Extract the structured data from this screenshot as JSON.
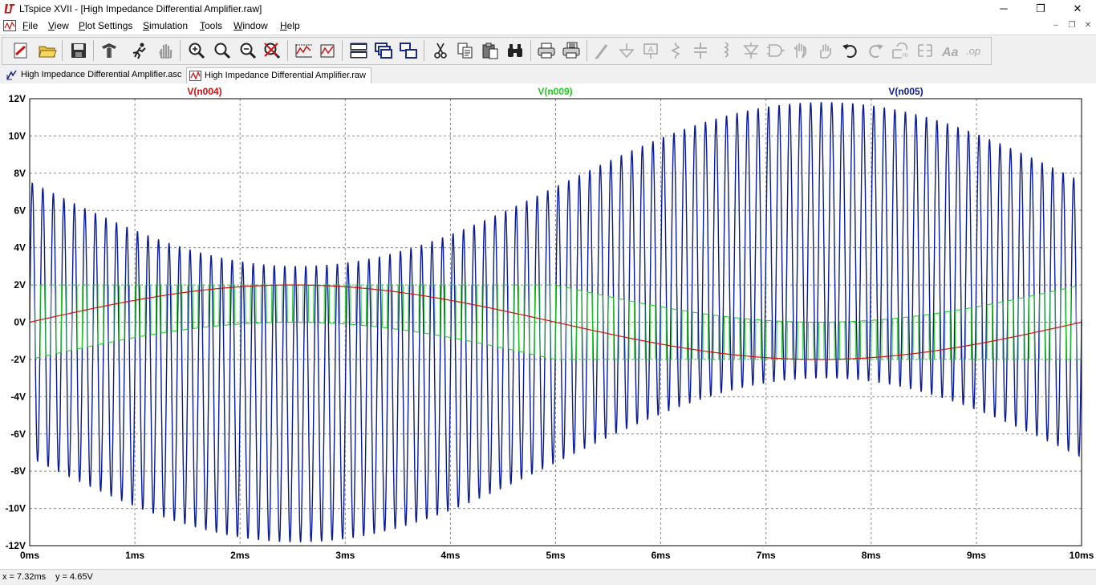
{
  "window": {
    "title": "LTspice XVII - [High Impedance Differential Amplifier.raw]",
    "minimize": "─",
    "maximize": "❐",
    "close": "✕"
  },
  "menu": [
    {
      "label": "File",
      "u": "F",
      "rest": "ile"
    },
    {
      "label": "View",
      "u": "V",
      "rest": "iew"
    },
    {
      "label": "Plot Settings",
      "u": "P",
      "rest": "lot Settings"
    },
    {
      "label": "Simulation",
      "u": "S",
      "rest": "imulation"
    },
    {
      "label": "Tools",
      "u": "T",
      "rest": "ools"
    },
    {
      "label": "Window",
      "u": "W",
      "rest": "indow"
    },
    {
      "label": "Help",
      "u": "H",
      "rest": "elp"
    }
  ],
  "mdi": {
    "minimize": "–",
    "restore": "❐",
    "close": "✕"
  },
  "toolbar_icons": [
    "new-schematic-icon",
    "open-icon",
    "save-icon",
    "control-panel-icon",
    "run-icon",
    "halt-icon",
    "zoom-in-icon",
    "zoom-full-icon",
    "zoom-out-icon",
    "zoom-cancel-icon",
    "autorange-icon",
    "fit-icon",
    "tile-horizontal-icon",
    "cascade-icon",
    "tile-vertical-icon",
    "cut-icon",
    "copy-icon",
    "paste-icon",
    "find-icon",
    "print-icon",
    "print-setup-icon",
    "wire-icon",
    "ground-icon",
    "label-icon",
    "resistor-icon",
    "capacitor-icon",
    "inductor-icon",
    "diode-icon",
    "component-icon",
    "move-icon",
    "drag-icon",
    "undo-icon",
    "redo-icon",
    "rotate-icon",
    "mirror-icon",
    "text-icon",
    "spice-directive-icon"
  ],
  "tabs": [
    {
      "label": "High Impedance Differential Amplifier.asc",
      "icon": "schematic-icon"
    },
    {
      "label": "High Impedance Differential Amplifier.raw",
      "icon": "waveform-icon"
    }
  ],
  "status": {
    "x": "x = 7.32ms",
    "y": "y = 4.65V"
  },
  "colors": {
    "v_n004": "#d01010",
    "v_n009": "#22cc22",
    "v_n005": "#0a1a9a",
    "grid": "#8a8a8a"
  },
  "chart_data": {
    "type": "line",
    "xlabel": "",
    "ylabel": "",
    "xlim": [
      0,
      10
    ],
    "ylim": [
      -12,
      12
    ],
    "x_unit": "ms",
    "y_unit": "V",
    "xticks": [
      "0ms",
      "1ms",
      "2ms",
      "3ms",
      "4ms",
      "5ms",
      "6ms",
      "7ms",
      "8ms",
      "9ms",
      "10ms"
    ],
    "yticks": [
      "12V",
      "10V",
      "8V",
      "6V",
      "4V",
      "2V",
      "0V",
      "-2V",
      "-4V",
      "-6V",
      "-8V",
      "-10V",
      "-12V"
    ],
    "grid": true,
    "series": [
      {
        "name": "V(n004)",
        "color": "#d01010",
        "kind": "sine",
        "description_values": {
          "amplitude": 2,
          "frequency_khz": 0.1,
          "offset": 0
        }
      },
      {
        "name": "V(n009)",
        "color": "#22cc22",
        "kind": "switching",
        "description_values": {
          "levels": [
            -2,
            2
          ],
          "carrier_khz": 10,
          "envelope_series": "V(n004)"
        }
      },
      {
        "name": "V(n005)",
        "color": "#0a1a9a",
        "kind": "am_carrier",
        "description_values": {
          "envelope_amplitude": 8.9,
          "carrier_amplitude": 3,
          "carrier_khz": 10,
          "envelope_khz": 0.1,
          "envelope_phase_ms": 7.55
        }
      }
    ]
  }
}
